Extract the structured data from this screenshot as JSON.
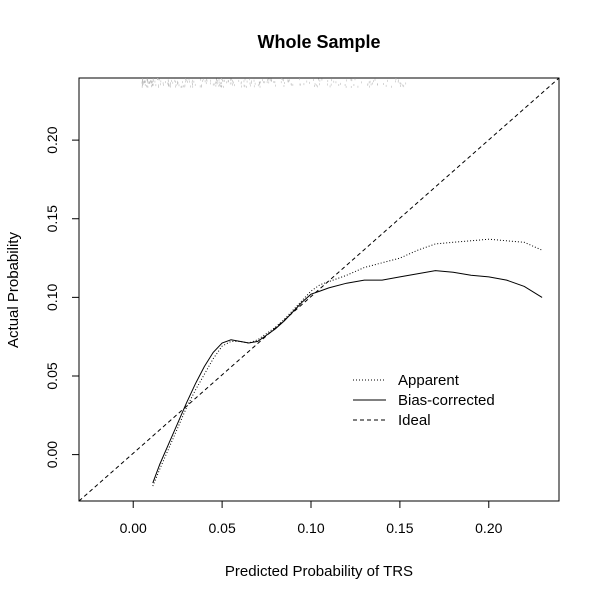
{
  "chart_data": {
    "type": "line",
    "title": "Whole Sample",
    "xlabel": "Predicted Probability of TRS",
    "ylabel": "Actual Probability",
    "xlim": [
      -0.0305,
      0.2395
    ],
    "ylim": [
      -0.0295,
      0.2395
    ],
    "x_ticks": [
      0.0,
      0.05,
      0.1,
      0.15,
      0.2
    ],
    "x_tick_labels": [
      "0.00",
      "0.05",
      "0.10",
      "0.15",
      "0.20"
    ],
    "y_ticks": [
      0.0,
      0.05,
      0.1,
      0.15,
      0.2
    ],
    "y_tick_labels": [
      "0.00",
      "0.05",
      "0.10",
      "0.15",
      "0.20"
    ],
    "grid": false,
    "legend_position": "bottom-right",
    "series": [
      {
        "name": "Apparent",
        "style": "dotted",
        "color": "#000000",
        "x": [
          0.011,
          0.015,
          0.02,
          0.025,
          0.03,
          0.035,
          0.04,
          0.045,
          0.05,
          0.055,
          0.06,
          0.065,
          0.07,
          0.075,
          0.08,
          0.085,
          0.09,
          0.095,
          0.1,
          0.105,
          0.11,
          0.12,
          0.13,
          0.14,
          0.15,
          0.16,
          0.17,
          0.18,
          0.19,
          0.2,
          0.21,
          0.22,
          0.23
        ],
        "y": [
          -0.02,
          -0.009,
          0.004,
          0.017,
          0.03,
          0.041,
          0.051,
          0.061,
          0.069,
          0.072,
          0.072,
          0.071,
          0.073,
          0.077,
          0.081,
          0.086,
          0.092,
          0.098,
          0.104,
          0.108,
          0.11,
          0.114,
          0.119,
          0.122,
          0.125,
          0.13,
          0.134,
          0.135,
          0.136,
          0.137,
          0.136,
          0.135,
          0.13
        ]
      },
      {
        "name": "Bias-corrected",
        "style": "solid",
        "color": "#000000",
        "x": [
          0.011,
          0.015,
          0.02,
          0.025,
          0.03,
          0.035,
          0.04,
          0.045,
          0.05,
          0.055,
          0.06,
          0.065,
          0.07,
          0.075,
          0.08,
          0.085,
          0.09,
          0.095,
          0.1,
          0.105,
          0.11,
          0.12,
          0.13,
          0.14,
          0.15,
          0.16,
          0.17,
          0.18,
          0.19,
          0.2,
          0.21,
          0.22,
          0.23
        ],
        "y": [
          -0.018,
          -0.006,
          0.007,
          0.02,
          0.033,
          0.045,
          0.056,
          0.065,
          0.071,
          0.073,
          0.072,
          0.071,
          0.072,
          0.076,
          0.08,
          0.085,
          0.091,
          0.097,
          0.102,
          0.104,
          0.106,
          0.109,
          0.111,
          0.111,
          0.113,
          0.115,
          0.117,
          0.116,
          0.114,
          0.113,
          0.111,
          0.107,
          0.1
        ]
      },
      {
        "name": "Ideal",
        "style": "dashed",
        "color": "#000000",
        "x": [
          -0.0305,
          0.2395
        ],
        "y": [
          -0.0305,
          0.2395
        ]
      }
    ],
    "rug": {
      "color": "#bbbbbb",
      "position": "top",
      "x_range": [
        0.005,
        0.16
      ]
    }
  }
}
